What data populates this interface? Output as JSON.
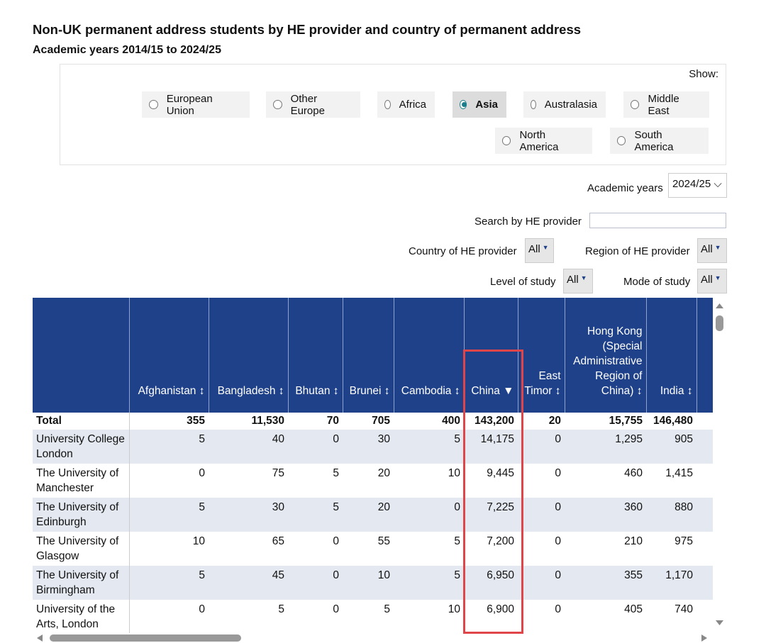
{
  "title": "Non-UK permanent address students by HE provider and country of permanent address",
  "subtitle": "Academic years 2014/15 to 2024/25",
  "show": {
    "label": "Show:",
    "options": [
      "European Union",
      "Other Europe",
      "Africa",
      "Asia",
      "Australasia",
      "Middle East",
      "North America",
      "South America"
    ],
    "selected": "Asia"
  },
  "filters": {
    "academic_years_label": "Academic years",
    "academic_years_value": "2024/25",
    "search_label": "Search by HE provider",
    "search_value": "",
    "country_label": "Country of HE provider",
    "country_value": "All",
    "region_label": "Region of HE provider",
    "region_value": "All",
    "level_label": "Level of study",
    "level_value": "All",
    "mode_label": "Mode of study",
    "mode_value": "All"
  },
  "table": {
    "headers": [
      "",
      "Afghanistan ↕",
      "Bangladesh ↕",
      "Bhutan ↕",
      "Brunei ↕",
      "Cambodia ↕",
      "China ▼",
      "East Timor ↕",
      "Hong Kong (Special Administrative Region of China) ↕",
      "India ↕",
      "In"
    ],
    "rows": [
      [
        "Total",
        "355",
        "11,530",
        "70",
        "705",
        "400",
        "143,200",
        "20",
        "15,755",
        "146,480",
        ""
      ],
      [
        "University College London",
        "5",
        "40",
        "0",
        "30",
        "5",
        "14,175",
        "0",
        "1,295",
        "905",
        ""
      ],
      [
        "The University of Manchester",
        "0",
        "75",
        "5",
        "20",
        "10",
        "9,445",
        "0",
        "460",
        "1,415",
        ""
      ],
      [
        "The University of Edinburgh",
        "5",
        "30",
        "5",
        "20",
        "0",
        "7,225",
        "0",
        "360",
        "880",
        ""
      ],
      [
        "The University of Glasgow",
        "10",
        "65",
        "0",
        "55",
        "5",
        "7,200",
        "0",
        "210",
        "975",
        ""
      ],
      [
        "The University of Birmingham",
        "5",
        "45",
        "0",
        "10",
        "5",
        "6,950",
        "0",
        "355",
        "1,170",
        ""
      ],
      [
        "University of the Arts, London",
        "0",
        "5",
        "0",
        "5",
        "10",
        "6,900",
        "0",
        "405",
        "740",
        ""
      ]
    ]
  },
  "colors": {
    "header": "#1f4189",
    "highlight": "#e0454a",
    "row_alt": "#e4e8f0"
  }
}
